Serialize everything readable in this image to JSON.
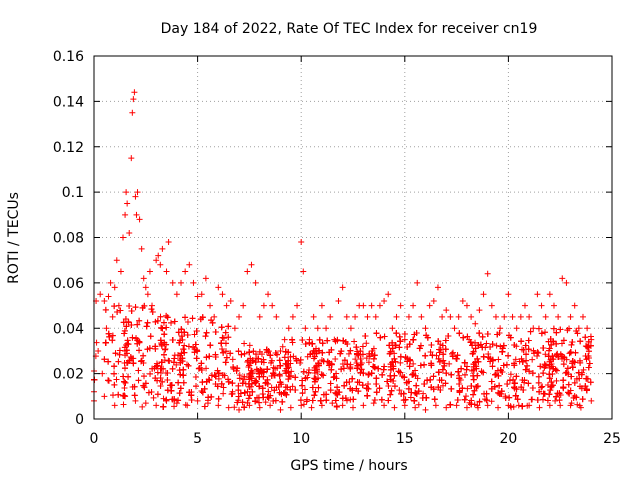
{
  "chart_data": {
    "type": "scatter",
    "title": "Day 184 of 2022, Rate Of TEC Index for receiver cn19",
    "xlabel": "GPS time / hours",
    "ylabel": "ROTI / TECUs",
    "xlim": [
      0,
      25
    ],
    "ylim": [
      0,
      0.16
    ],
    "xticks": [
      0,
      5,
      10,
      15,
      20,
      25
    ],
    "yticks": [
      0,
      0.02,
      0.04,
      0.06,
      0.08,
      0.1,
      0.12,
      0.14,
      0.16
    ],
    "xtick_labels": [
      "0",
      "5",
      "10",
      "15",
      "20",
      "25"
    ],
    "ytick_labels": [
      "0",
      "0.02",
      "0.04",
      "0.06",
      "0.08",
      "0.1",
      "0.12",
      "0.14",
      "0.16"
    ],
    "grid": true,
    "marker": "+",
    "marker_color": "#ff0000",
    "series": [
      {
        "points": [
          [
            0.0,
            0.012
          ],
          [
            0.1,
            0.052
          ],
          [
            0.2,
            0.03
          ],
          [
            0.3,
            0.055
          ],
          [
            0.4,
            0.02
          ],
          [
            0.5,
            0.052
          ],
          [
            0.6,
            0.04
          ],
          [
            0.7,
            0.054
          ],
          [
            0.8,
            0.06
          ],
          [
            0.9,
            0.045
          ],
          [
            1.0,
            0.058
          ],
          [
            1.1,
            0.07
          ],
          [
            1.2,
            0.05
          ],
          [
            1.3,
            0.065
          ],
          [
            1.4,
            0.08
          ],
          [
            1.5,
            0.09
          ],
          [
            1.55,
            0.1
          ],
          [
            1.6,
            0.095
          ],
          [
            1.7,
            0.082
          ],
          [
            1.8,
            0.115
          ],
          [
            1.85,
            0.135
          ],
          [
            1.9,
            0.141
          ],
          [
            1.95,
            0.144
          ],
          [
            2.0,
            0.098
          ],
          [
            2.05,
            0.09
          ],
          [
            2.1,
            0.1
          ],
          [
            2.2,
            0.088
          ],
          [
            2.3,
            0.075
          ],
          [
            2.4,
            0.062
          ],
          [
            2.5,
            0.058
          ],
          [
            2.6,
            0.055
          ],
          [
            2.7,
            0.065
          ],
          [
            2.8,
            0.05
          ],
          [
            3.0,
            0.07
          ],
          [
            3.1,
            0.072
          ],
          [
            3.2,
            0.068
          ],
          [
            3.3,
            0.075
          ],
          [
            3.5,
            0.065
          ],
          [
            3.6,
            0.078
          ],
          [
            3.8,
            0.06
          ],
          [
            4.0,
            0.055
          ],
          [
            4.2,
            0.06
          ],
          [
            4.4,
            0.065
          ],
          [
            4.6,
            0.068
          ],
          [
            4.8,
            0.06
          ],
          [
            5.0,
            0.054
          ],
          [
            5.2,
            0.055
          ],
          [
            5.4,
            0.062
          ],
          [
            5.6,
            0.05
          ],
          [
            5.8,
            0.045
          ],
          [
            6.0,
            0.058
          ],
          [
            6.2,
            0.055
          ],
          [
            6.4,
            0.05
          ],
          [
            6.6,
            0.052
          ],
          [
            6.8,
            0.04
          ],
          [
            7.0,
            0.045
          ],
          [
            7.2,
            0.05
          ],
          [
            7.4,
            0.065
          ],
          [
            7.6,
            0.068
          ],
          [
            7.8,
            0.06
          ],
          [
            8.0,
            0.045
          ],
          [
            8.2,
            0.05
          ],
          [
            8.4,
            0.055
          ],
          [
            8.6,
            0.05
          ],
          [
            8.8,
            0.045
          ],
          [
            9.0,
            0.03
          ],
          [
            9.2,
            0.035
          ],
          [
            9.4,
            0.04
          ],
          [
            9.6,
            0.045
          ],
          [
            9.8,
            0.05
          ],
          [
            10.0,
            0.078
          ],
          [
            10.1,
            0.065
          ],
          [
            10.2,
            0.04
          ],
          [
            10.4,
            0.035
          ],
          [
            10.6,
            0.045
          ],
          [
            10.8,
            0.04
          ],
          [
            11.0,
            0.05
          ],
          [
            11.2,
            0.04
          ],
          [
            11.4,
            0.045
          ],
          [
            11.6,
            0.035
          ],
          [
            11.8,
            0.052
          ],
          [
            12.0,
            0.058
          ],
          [
            12.2,
            0.045
          ],
          [
            12.4,
            0.04
          ],
          [
            12.6,
            0.045
          ],
          [
            12.8,
            0.05
          ],
          [
            13.0,
            0.05
          ],
          [
            13.2,
            0.045
          ],
          [
            13.4,
            0.05
          ],
          [
            13.6,
            0.045
          ],
          [
            13.8,
            0.05
          ],
          [
            14.0,
            0.052
          ],
          [
            14.2,
            0.055
          ],
          [
            14.4,
            0.04
          ],
          [
            14.6,
            0.045
          ],
          [
            14.8,
            0.05
          ],
          [
            15.0,
            0.035
          ],
          [
            15.2,
            0.045
          ],
          [
            15.4,
            0.05
          ],
          [
            15.6,
            0.06
          ],
          [
            15.8,
            0.045
          ],
          [
            16.0,
            0.04
          ],
          [
            16.2,
            0.05
          ],
          [
            16.4,
            0.052
          ],
          [
            16.6,
            0.058
          ],
          [
            16.8,
            0.045
          ],
          [
            17.0,
            0.048
          ],
          [
            17.2,
            0.045
          ],
          [
            17.4,
            0.04
          ],
          [
            17.6,
            0.045
          ],
          [
            17.8,
            0.052
          ],
          [
            18.0,
            0.05
          ],
          [
            18.2,
            0.045
          ],
          [
            18.4,
            0.042
          ],
          [
            18.6,
            0.048
          ],
          [
            18.8,
            0.055
          ],
          [
            19.0,
            0.064
          ],
          [
            19.2,
            0.05
          ],
          [
            19.4,
            0.045
          ],
          [
            19.6,
            0.04
          ],
          [
            19.8,
            0.045
          ],
          [
            20.0,
            0.055
          ],
          [
            20.2,
            0.045
          ],
          [
            20.4,
            0.04
          ],
          [
            20.6,
            0.045
          ],
          [
            20.8,
            0.05
          ],
          [
            21.0,
            0.045
          ],
          [
            21.2,
            0.04
          ],
          [
            21.4,
            0.055
          ],
          [
            21.6,
            0.05
          ],
          [
            21.8,
            0.045
          ],
          [
            22.0,
            0.055
          ],
          [
            22.2,
            0.05
          ],
          [
            22.4,
            0.045
          ],
          [
            22.6,
            0.062
          ],
          [
            22.8,
            0.06
          ],
          [
            23.0,
            0.045
          ],
          [
            23.2,
            0.05
          ],
          [
            23.4,
            0.04
          ],
          [
            23.6,
            0.045
          ],
          [
            23.8,
            0.04
          ],
          [
            24.0,
            0.035
          ],
          [
            0.0,
            0.008
          ],
          [
            0.5,
            0.01
          ],
          [
            1.0,
            0.006
          ],
          [
            1.5,
            0.01
          ],
          [
            2.0,
            0.008
          ],
          [
            2.5,
            0.007
          ],
          [
            3.0,
            0.006
          ],
          [
            3.5,
            0.008
          ],
          [
            4.0,
            0.007
          ],
          [
            4.5,
            0.006
          ],
          [
            5.0,
            0.008
          ],
          [
            5.5,
            0.007
          ],
          [
            6.0,
            0.006
          ],
          [
            6.5,
            0.005
          ],
          [
            7.0,
            0.004
          ],
          [
            7.5,
            0.006
          ],
          [
            8.0,
            0.005
          ],
          [
            8.5,
            0.006
          ],
          [
            9.0,
            0.004
          ],
          [
            9.5,
            0.005
          ],
          [
            10.0,
            0.006
          ],
          [
            10.5,
            0.005
          ],
          [
            11.0,
            0.006
          ],
          [
            11.5,
            0.007
          ],
          [
            12.0,
            0.006
          ],
          [
            12.5,
            0.005
          ],
          [
            13.0,
            0.006
          ],
          [
            13.5,
            0.007
          ],
          [
            14.0,
            0.006
          ],
          [
            14.5,
            0.005
          ],
          [
            15.0,
            0.006
          ],
          [
            15.5,
            0.005
          ],
          [
            16.0,
            0.004
          ],
          [
            16.5,
            0.006
          ],
          [
            17.0,
            0.005
          ],
          [
            17.5,
            0.006
          ],
          [
            18.0,
            0.005
          ],
          [
            18.5,
            0.006
          ],
          [
            19.0,
            0.006
          ],
          [
            19.5,
            0.005
          ],
          [
            20.0,
            0.006
          ],
          [
            20.5,
            0.006
          ],
          [
            21.0,
            0.006
          ],
          [
            21.5,
            0.005
          ],
          [
            22.0,
            0.006
          ],
          [
            22.5,
            0.006
          ],
          [
            23.0,
            0.006
          ],
          [
            23.5,
            0.005
          ],
          [
            24.0,
            0.008
          ]
        ],
        "density_bands": [
          [
            0,
            24,
            0.005,
            0.035
          ],
          [
            0.5,
            3.5,
            0.01,
            0.05
          ],
          [
            3.0,
            6.5,
            0.008,
            0.045
          ],
          [
            6.5,
            9.5,
            0.007,
            0.03
          ],
          [
            9.5,
            13.0,
            0.008,
            0.035
          ],
          [
            13.0,
            17.0,
            0.008,
            0.038
          ],
          [
            17.0,
            21.0,
            0.008,
            0.038
          ],
          [
            21.0,
            24.0,
            0.008,
            0.04
          ]
        ]
      }
    ]
  }
}
